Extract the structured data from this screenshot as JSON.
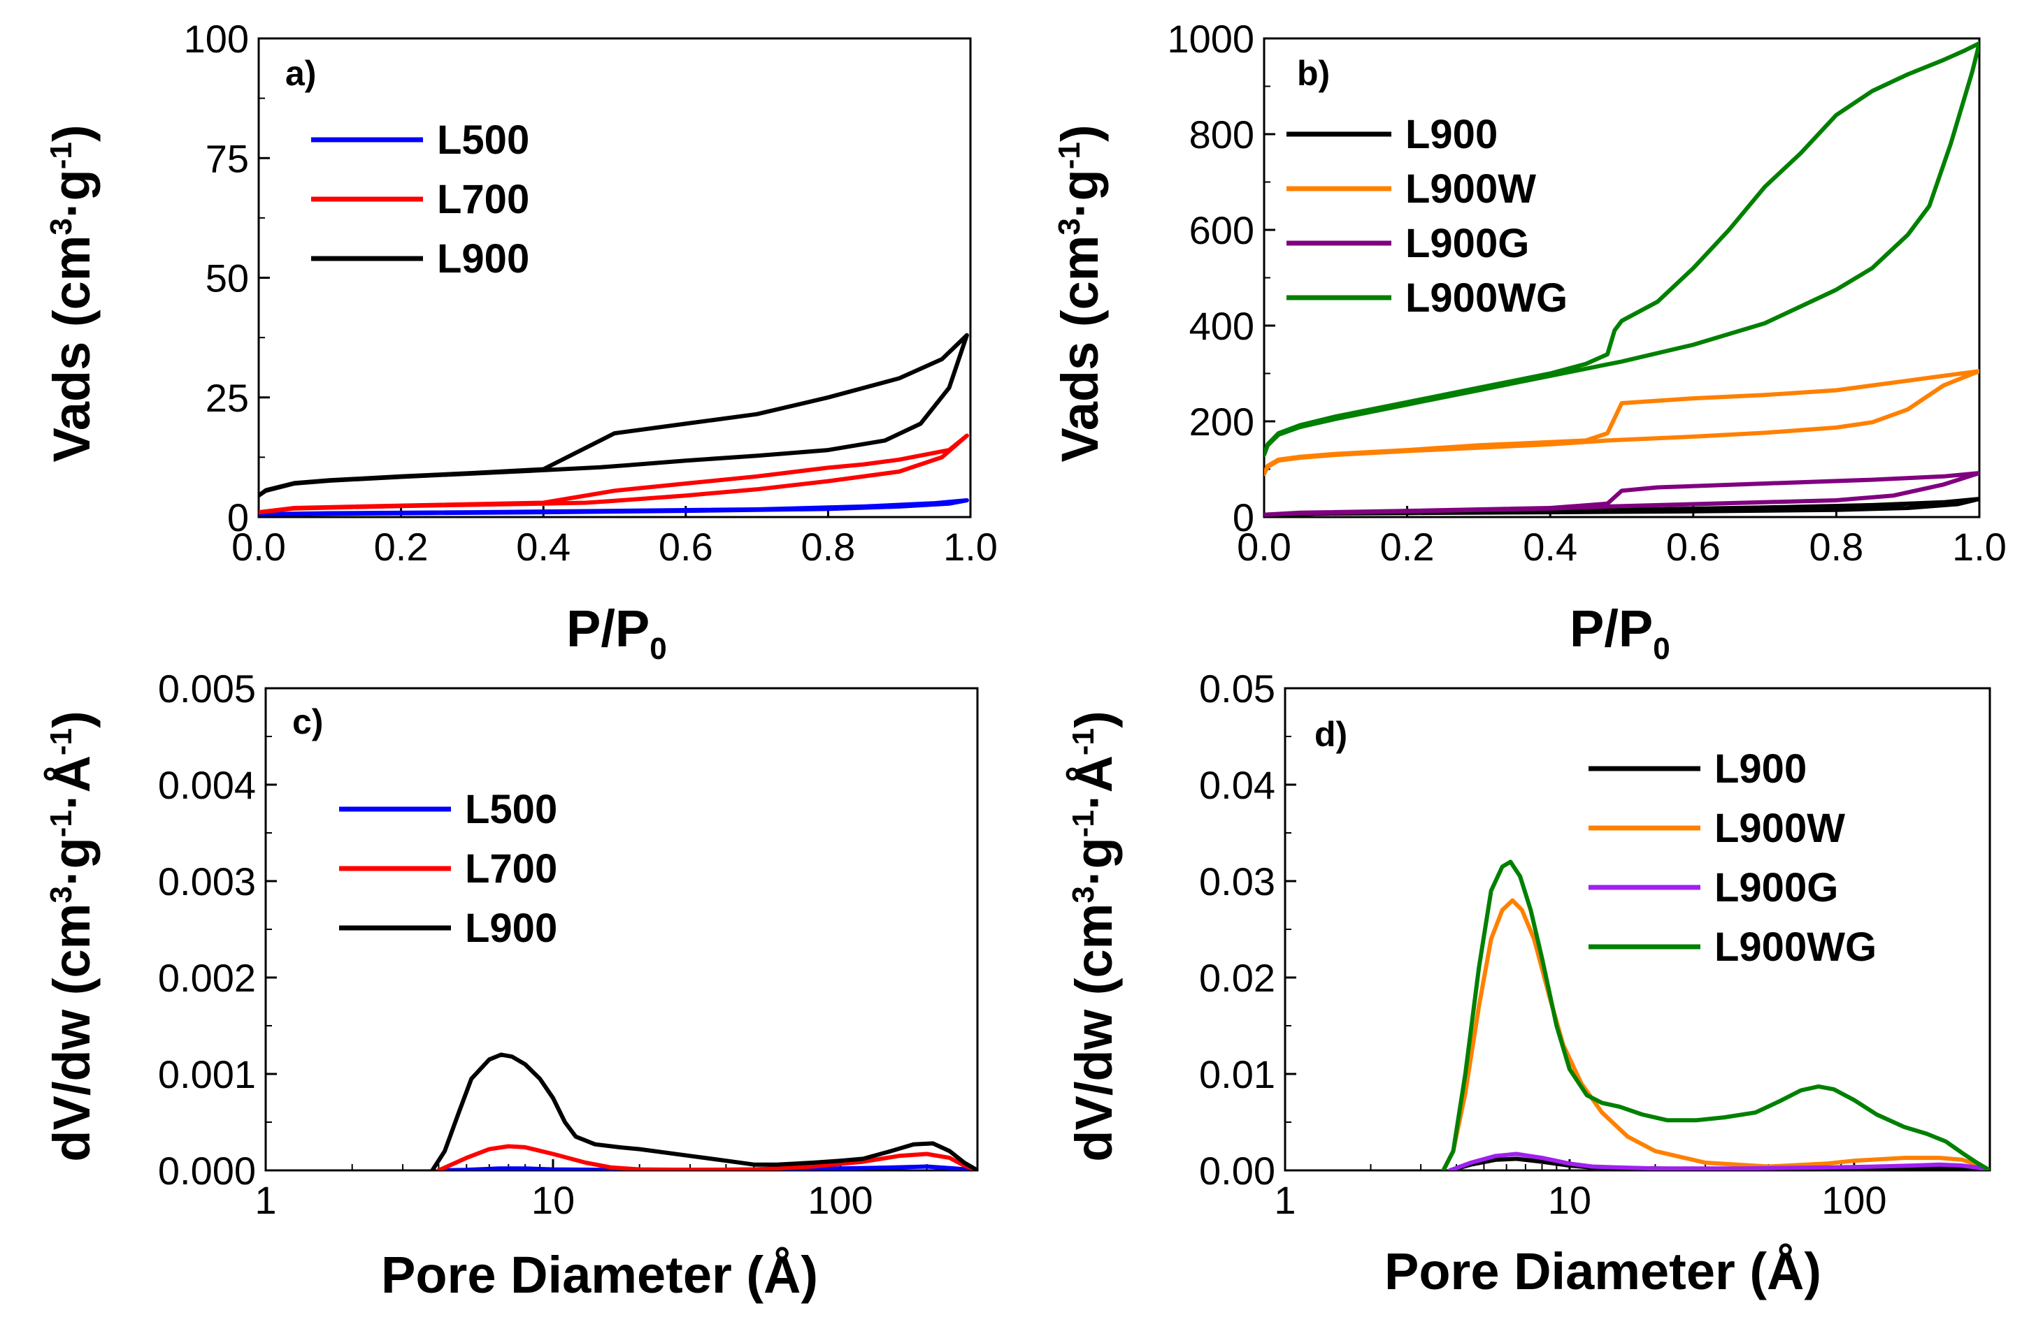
{
  "chart_data": [
    {
      "panel": "a)",
      "type": "line",
      "xlabel": "P/P0",
      "ylabel": "Vads (cm3·g-1)",
      "xscale": "linear",
      "xlim": [
        0,
        1.0
      ],
      "ylim": [
        0,
        100
      ],
      "xticks": [
        0.0,
        0.2,
        0.4,
        0.6,
        0.8,
        1.0
      ],
      "xtick_labels": [
        "0.0",
        "0.2",
        "0.4",
        "0.6",
        "0.8",
        "1.0"
      ],
      "yticks": [
        0,
        25,
        50,
        75,
        100
      ],
      "ytick_labels": [
        "0",
        "25",
        "50",
        "75",
        "100"
      ],
      "legend_position": "top-left",
      "series": [
        {
          "name": "L500",
          "color": "#0000ff",
          "x": [
            0,
            0.2,
            0.4,
            0.6,
            0.8,
            0.9,
            0.97,
            0.995,
            0.95,
            0.85,
            0.7,
            0.5,
            0.3,
            0.1,
            0
          ],
          "y": [
            0.6,
            0.8,
            1.0,
            1.3,
            1.7,
            2.2,
            2.8,
            3.5,
            2.9,
            2.2,
            1.6,
            1.3,
            1.0,
            0.8,
            0.6
          ]
        },
        {
          "name": "L700",
          "color": "#ff0000",
          "x": [
            0,
            0.05,
            0.2,
            0.4,
            0.46,
            0.5,
            0.6,
            0.7,
            0.8,
            0.9,
            0.96,
            0.995,
            0.97,
            0.9,
            0.85,
            0.8,
            0.7,
            0.6,
            0.5,
            0.4,
            0.2,
            0.05,
            0
          ],
          "y": [
            1.0,
            1.8,
            2.3,
            2.8,
            3.0,
            3.4,
            4.5,
            5.8,
            7.5,
            9.5,
            12.5,
            17.0,
            14.0,
            12.0,
            11.0,
            10.3,
            8.5,
            7.0,
            5.5,
            3.0,
            2.4,
            1.9,
            1.0
          ]
        },
        {
          "name": "L900",
          "color": "#000000",
          "x": [
            0,
            0.01,
            0.05,
            0.1,
            0.2,
            0.3,
            0.4,
            0.48,
            0.55,
            0.6,
            0.7,
            0.8,
            0.88,
            0.93,
            0.97,
            0.995,
            0.96,
            0.9,
            0.8,
            0.7,
            0.6,
            0.5,
            0.48,
            0.4,
            0.3,
            0.2,
            0.1,
            0.05,
            0.01,
            0
          ],
          "y": [
            4.5,
            5.5,
            7.0,
            7.6,
            8.4,
            9.1,
            9.8,
            10.4,
            11.2,
            11.8,
            12.8,
            14.0,
            16.0,
            19.5,
            27.0,
            38.0,
            33.0,
            29.0,
            25.0,
            21.5,
            19.5,
            17.5,
            16.0,
            10.0,
            9.2,
            8.5,
            7.7,
            7.1,
            5.6,
            4.5
          ]
        }
      ],
      "legend": [
        "L500",
        "L700",
        "L900"
      ]
    },
    {
      "panel": "b)",
      "type": "line",
      "xlabel": "P/P0",
      "ylabel": "Vads (cm3·g-1)",
      "xscale": "linear",
      "xlim": [
        0,
        1.0
      ],
      "ylim": [
        0,
        1000
      ],
      "xticks": [
        0.0,
        0.2,
        0.4,
        0.6,
        0.8,
        1.0
      ],
      "xtick_labels": [
        "0.0",
        "0.2",
        "0.4",
        "0.6",
        "0.8",
        "1.0"
      ],
      "yticks": [
        0,
        200,
        400,
        600,
        800,
        1000
      ],
      "ytick_labels": [
        "0",
        "200",
        "400",
        "600",
        "800",
        "1000"
      ],
      "legend_position": "top-left",
      "series": [
        {
          "name": "L900",
          "color": "#000000",
          "x": [
            0,
            0.05,
            0.2,
            0.4,
            0.6,
            0.8,
            0.9,
            0.97,
            1.0,
            0.95,
            0.85,
            0.7,
            0.5,
            0.3,
            0.1,
            0
          ],
          "y": [
            5,
            7,
            8.5,
            10,
            12,
            15,
            19,
            27,
            38,
            31,
            25,
            20,
            15,
            11,
            8,
            5
          ]
        },
        {
          "name": "L900W",
          "color": "#ff8000",
          "x": [
            0,
            0.005,
            0.02,
            0.05,
            0.1,
            0.2,
            0.3,
            0.4,
            0.48,
            0.6,
            0.7,
            0.8,
            0.85,
            0.9,
            0.95,
            1.0,
            0.95,
            0.9,
            0.8,
            0.7,
            0.6,
            0.5,
            0.48,
            0.45,
            0.3,
            0.2,
            0.1,
            0.05,
            0.02,
            0.005,
            0
          ],
          "y": [
            90,
            105,
            118,
            124,
            130,
            138,
            145,
            152,
            160,
            168,
            176,
            187,
            198,
            225,
            275,
            305,
            295,
            285,
            265,
            255,
            248,
            238,
            175,
            160,
            150,
            140,
            132,
            126,
            120,
            107,
            90
          ]
        },
        {
          "name": "L900G",
          "color": "#800080",
          "x": [
            0,
            0.05,
            0.2,
            0.4,
            0.48,
            0.6,
            0.8,
            0.88,
            0.95,
            1.0,
            0.95,
            0.85,
            0.7,
            0.55,
            0.5,
            0.48,
            0.4,
            0.2,
            0.05,
            0
          ],
          "y": [
            5,
            8,
            12,
            18,
            22,
            27,
            35,
            45,
            68,
            92,
            85,
            78,
            70,
            62,
            55,
            28,
            19,
            13,
            9,
            5
          ]
        },
        {
          "name": "L900WG",
          "color": "#008000",
          "x": [
            0,
            0.005,
            0.02,
            0.05,
            0.1,
            0.2,
            0.3,
            0.4,
            0.5,
            0.6,
            0.7,
            0.75,
            0.8,
            0.85,
            0.9,
            0.93,
            0.96,
            0.99,
            1.0,
            0.98,
            0.95,
            0.9,
            0.85,
            0.8,
            0.75,
            0.7,
            0.65,
            0.6,
            0.55,
            0.5,
            0.49,
            0.48,
            0.45,
            0.4,
            0.3,
            0.2,
            0.1,
            0.05,
            0.02,
            0.005,
            0
          ],
          "y": [
            130,
            150,
            172,
            188,
            205,
            235,
            265,
            295,
            325,
            360,
            405,
            440,
            475,
            520,
            590,
            650,
            780,
            930,
            990,
            975,
            955,
            925,
            890,
            840,
            760,
            690,
            600,
            520,
            450,
            410,
            390,
            340,
            320,
            300,
            270,
            240,
            210,
            192,
            175,
            152,
            130
          ]
        }
      ],
      "legend": [
        "L900",
        "L900W",
        "L900G",
        "L900WG"
      ]
    },
    {
      "panel": "c)",
      "type": "line",
      "xlabel": "Pore Diameter (Å)",
      "ylabel": "dV/dw (cm3·g-1·Å-1)",
      "xscale": "log",
      "xlim": [
        1,
        300
      ],
      "ylim": [
        0,
        0.005
      ],
      "xticks": [
        1,
        10,
        100
      ],
      "xtick_labels": [
        "1",
        "10",
        "100"
      ],
      "yticks": [
        0,
        0.001,
        0.002,
        0.003,
        0.004,
        0.005
      ],
      "ytick_labels": [
        "0.000",
        "0.001",
        "0.002",
        "0.003",
        "0.004",
        "0.005"
      ],
      "legend_position": "top-left",
      "series": [
        {
          "name": "L500",
          "color": "#0000ff",
          "x": [
            4,
            5,
            6.5,
            8,
            10,
            15,
            30,
            60,
            100,
            150,
            200,
            250,
            300
          ],
          "y": [
            0,
            5e-06,
            2e-05,
            2e-05,
            1e-05,
            5e-06,
            5e-06,
            1e-05,
            2e-05,
            3e-05,
            4e-05,
            2e-05,
            0
          ]
        },
        {
          "name": "L700",
          "color": "#ff0000",
          "x": [
            4,
            5,
            6,
            7,
            8,
            10,
            13,
            16,
            20,
            30,
            50,
            80,
            120,
            160,
            200,
            240,
            270,
            300
          ],
          "y": [
            0,
            0.00013,
            0.00022,
            0.00025,
            0.00024,
            0.00017,
            8e-05,
            3e-05,
            1e-05,
            5e-06,
            1e-05,
            4e-05,
            9e-05,
            0.00015,
            0.00017,
            0.00013,
            5e-05,
            0
          ]
        },
        {
          "name": "L900",
          "color": "#000000",
          "x": [
            3.8,
            4.2,
            4.7,
            5.2,
            6,
            6.6,
            7.2,
            8,
            9,
            10,
            11,
            12,
            14,
            17,
            20,
            30,
            40,
            50,
            60,
            80,
            100,
            120,
            150,
            180,
            210,
            240,
            270,
            300
          ],
          "y": [
            0,
            0.0002,
            0.0006,
            0.00095,
            0.00115,
            0.0012,
            0.00118,
            0.0011,
            0.00095,
            0.00075,
            0.0005,
            0.00035,
            0.00027,
            0.00024,
            0.00022,
            0.00015,
            0.0001,
            6e-05,
            6e-05,
            8e-05,
            0.0001,
            0.00012,
            0.0002,
            0.00027,
            0.00028,
            0.0002,
            8e-05,
            0
          ]
        }
      ],
      "legend": [
        "L500",
        "L700",
        "L900"
      ]
    },
    {
      "panel": "d)",
      "type": "line",
      "xlabel": "Pore Diameter (Å)",
      "ylabel": "dV/dw (cm3·g-1·Å-1)",
      "xscale": "log",
      "xlim": [
        1,
        300
      ],
      "ylim": [
        0,
        0.05
      ],
      "xticks": [
        1,
        10,
        100
      ],
      "xtick_labels": [
        "1",
        "10",
        "100"
      ],
      "yticks": [
        0,
        0.01,
        0.02,
        0.03,
        0.04,
        0.05
      ],
      "ytick_labels": [
        "0.00",
        "0.01",
        "0.02",
        "0.03",
        "0.04",
        "0.05"
      ],
      "legend_position": "top-right",
      "series": [
        {
          "name": "L900",
          "color": "#000000",
          "x": [
            3.8,
            4.5,
            5.5,
            6.5,
            8,
            10,
            12,
            15,
            20,
            40,
            80,
            120,
            160,
            200,
            240,
            270,
            300
          ],
          "y": [
            0,
            0.0006,
            0.0011,
            0.0012,
            0.0009,
            0.0005,
            0.0003,
            0.00025,
            0.0002,
            0.0001,
            0.0001,
            0.00015,
            0.0002,
            0.00025,
            0.0002,
            0.0001,
            0
          ]
        },
        {
          "name": "L900W",
          "color": "#ff8000",
          "x": [
            3.6,
            3.9,
            4.3,
            4.8,
            5.3,
            5.8,
            6.3,
            6.8,
            7.5,
            8.5,
            9.5,
            11,
            13,
            16,
            20,
            30,
            50,
            80,
            100,
            150,
            200,
            240,
            270,
            300
          ],
          "y": [
            0,
            0.002,
            0.008,
            0.017,
            0.024,
            0.027,
            0.028,
            0.027,
            0.024,
            0.018,
            0.013,
            0.009,
            0.006,
            0.0035,
            0.002,
            0.0008,
            0.0004,
            0.0007,
            0.001,
            0.0013,
            0.0013,
            0.0011,
            0.0006,
            0
          ]
        },
        {
          "name": "L900G",
          "color": "#a020f0",
          "x": [
            3.8,
            4.5,
            5.5,
            6.5,
            8,
            10,
            12,
            15,
            20,
            40,
            80,
            120,
            160,
            200,
            240,
            270,
            300
          ],
          "y": [
            0,
            0.0008,
            0.0015,
            0.0017,
            0.0013,
            0.0007,
            0.0004,
            0.0003,
            0.0002,
            0.0002,
            0.0003,
            0.0004,
            0.0005,
            0.0006,
            0.0005,
            0.0003,
            0
          ]
        },
        {
          "name": "L900WG",
          "color": "#008000",
          "x": [
            3.6,
            3.9,
            4.3,
            4.8,
            5.3,
            5.8,
            6.2,
            6.7,
            7.3,
            8,
            9,
            10,
            11.5,
            13,
            15,
            18,
            22,
            28,
            35,
            45,
            55,
            65,
            75,
            85,
            100,
            120,
            150,
            180,
            210,
            240,
            270,
            300
          ],
          "y": [
            0,
            0.002,
            0.01,
            0.021,
            0.029,
            0.0315,
            0.032,
            0.0305,
            0.027,
            0.022,
            0.015,
            0.0105,
            0.0078,
            0.007,
            0.0066,
            0.0058,
            0.0052,
            0.0052,
            0.0055,
            0.006,
            0.0072,
            0.0083,
            0.0087,
            0.0084,
            0.0073,
            0.0058,
            0.0045,
            0.0038,
            0.003,
            0.0018,
            0.0008,
            0
          ]
        }
      ],
      "legend": [
        "L900",
        "L900W",
        "L900G",
        "L900WG"
      ]
    }
  ]
}
